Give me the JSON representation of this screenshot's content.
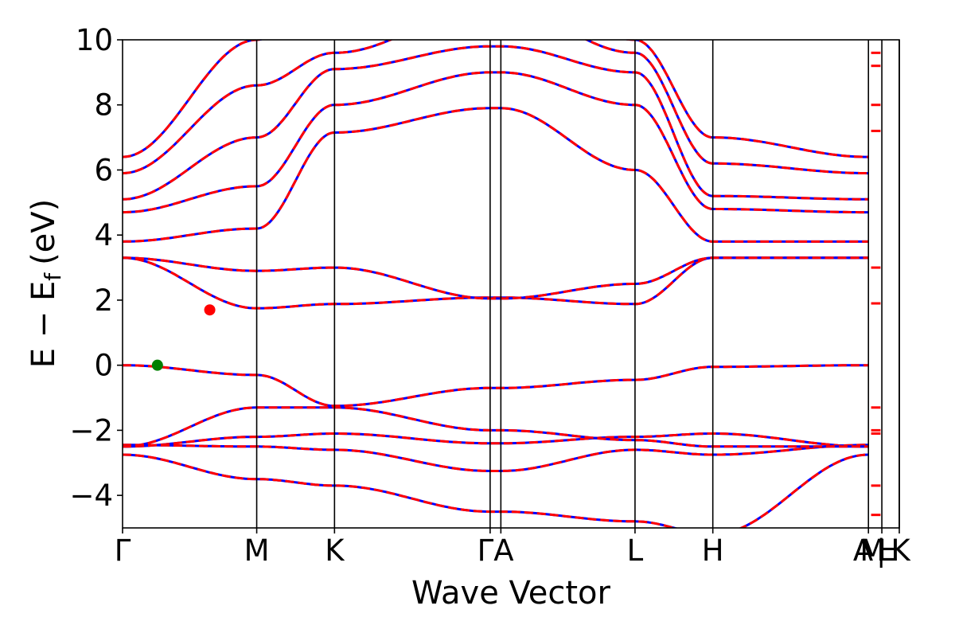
{
  "chart_data": {
    "type": "line",
    "title": "",
    "xlabel": "Wave Vector",
    "ylabel": {
      "main": "E − E",
      "sub": "f",
      "unit": "(eV)"
    },
    "ylim": [
      -5,
      10
    ],
    "yticks": [
      -4,
      -2,
      0,
      2,
      4,
      6,
      8,
      10
    ],
    "ytick_labels": [
      "−4",
      "−2",
      "0",
      "2",
      "4",
      "6",
      "8",
      "10"
    ],
    "grid": false,
    "legend": "none",
    "series_colors": {
      "reference": "#0000ff",
      "prediction": "#ff0000"
    },
    "kpath": {
      "x_max": 5.79,
      "points": [
        {
          "label": "Γ",
          "x": 0.0
        },
        {
          "label": "M",
          "x": 1.0
        },
        {
          "label": "K",
          "x": 1.58
        },
        {
          "label": "Γ",
          "x": 2.74
        },
        {
          "label": "A",
          "x": 2.82
        },
        {
          "label": "L",
          "x": 3.82
        },
        {
          "label": "H",
          "x": 4.4
        },
        {
          "label": "A",
          "x": 5.56
        },
        {
          "label": "M",
          "x": 5.58
        },
        {
          "label": "L",
          "x": 5.66
        },
        {
          "label": "H",
          "x": 5.7
        },
        {
          "label": "K",
          "x": 5.79
        }
      ],
      "tick_labels": [
        {
          "text": "Γ",
          "x": 0.0
        },
        {
          "text": "M",
          "x": 1.0
        },
        {
          "text": "K",
          "x": 1.58
        },
        {
          "text": "ΓA",
          "x": 2.78
        },
        {
          "text": "L",
          "x": 3.82
        },
        {
          "text": "H",
          "x": 4.4
        },
        {
          "text": "A",
          "x": 5.52
        },
        {
          "text": "M",
          "x": 5.59
        },
        {
          "text": "|",
          "x": 5.655
        },
        {
          "text": "L",
          "x": 5.69
        },
        {
          "text": "H",
          "x": 5.71
        },
        {
          "text": "K",
          "x": 5.8
        }
      ],
      "vertical_lines": [
        1.0,
        1.58,
        2.74,
        2.82,
        3.82,
        4.4,
        5.56,
        5.66,
        5.79
      ]
    },
    "bands": [
      [
        -2.75,
        -3.5,
        -3.7,
        -4.5,
        -4.8,
        -5.2
      ],
      [
        -2.5,
        -2.2,
        -2.1,
        -2.4,
        -2.5
      ],
      [
        -2.45,
        -2.5,
        -2.6,
        -3.25,
        -2.6,
        -2.75
      ],
      [
        -2.5,
        -1.3,
        -1.3,
        -2.0,
        -2.3,
        -2.5
      ],
      [
        0.0,
        -0.3,
        -1.25,
        -0.7,
        -0.45,
        -0.05
      ],
      [
        3.3,
        1.75,
        1.88,
        2.08,
        1.88,
        3.3
      ],
      [
        3.3,
        2.9,
        3.0,
        2.05,
        2.5,
        3.3
      ],
      [
        3.8,
        4.2,
        7.15,
        7.9,
        6.0,
        3.8
      ],
      [
        4.7,
        5.5,
        8.0,
        9.0,
        8.0,
        4.8
      ],
      [
        5.1,
        7.0,
        9.1,
        9.8,
        9.0,
        5.2
      ],
      [
        5.9,
        8.6,
        9.6,
        11.0,
        9.6,
        6.2
      ],
      [
        6.4,
        10.0,
        12.0,
        12.0,
        10.0,
        7.0
      ]
    ],
    "markers": [
      {
        "x": 0.26,
        "y": 0.0,
        "color": "#008000"
      },
      {
        "x": 0.65,
        "y": 1.7,
        "color": "#ff0000"
      }
    ]
  }
}
